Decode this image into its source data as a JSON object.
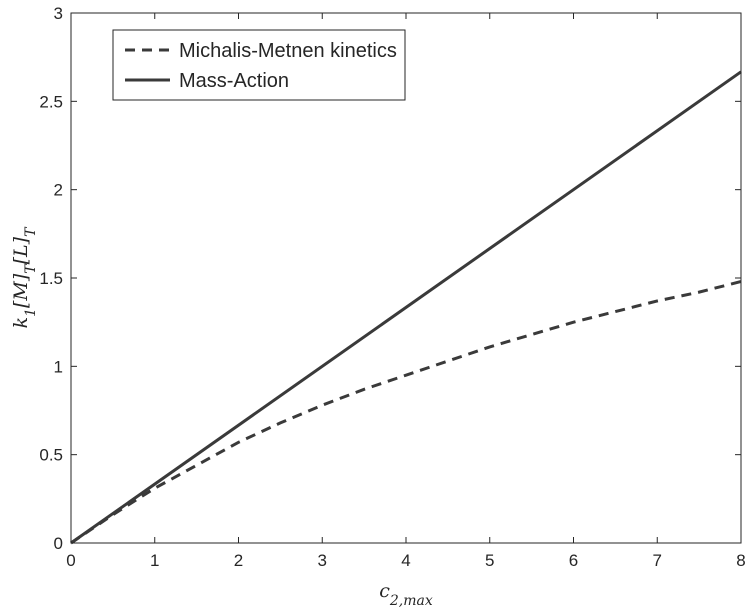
{
  "chart_data": {
    "type": "line",
    "title": "",
    "xlabel": "c_{2,max}",
    "ylabel": "k_1[M]_T[L]_T",
    "xlim": [
      0,
      8
    ],
    "ylim": [
      0,
      3
    ],
    "x_ticks": [
      0,
      1,
      2,
      3,
      4,
      5,
      6,
      7,
      8
    ],
    "y_ticks": [
      0,
      0.5,
      1,
      1.5,
      2,
      2.5,
      3
    ],
    "y_tick_labels": [
      "0",
      "0.5",
      "1",
      "1.5",
      "2",
      "2.5",
      "3"
    ],
    "grid": false,
    "legend_position": "top-left",
    "series": [
      {
        "name": "Michalis-Metnen kinetics",
        "style": "dashed",
        "color": "#3a3a3a",
        "x": [
          0,
          0.5,
          1,
          1.5,
          2,
          2.5,
          3,
          3.5,
          4,
          4.5,
          5,
          5.5,
          6,
          6.5,
          7,
          7.5,
          8
        ],
        "y": [
          0,
          0.16,
          0.31,
          0.44,
          0.57,
          0.68,
          0.78,
          0.87,
          0.95,
          1.03,
          1.11,
          1.18,
          1.25,
          1.31,
          1.37,
          1.42,
          1.48
        ]
      },
      {
        "name": "Mass-Action",
        "style": "solid",
        "color": "#3a3a3a",
        "x": [
          0,
          8
        ],
        "y": [
          0,
          2.667
        ]
      }
    ]
  }
}
